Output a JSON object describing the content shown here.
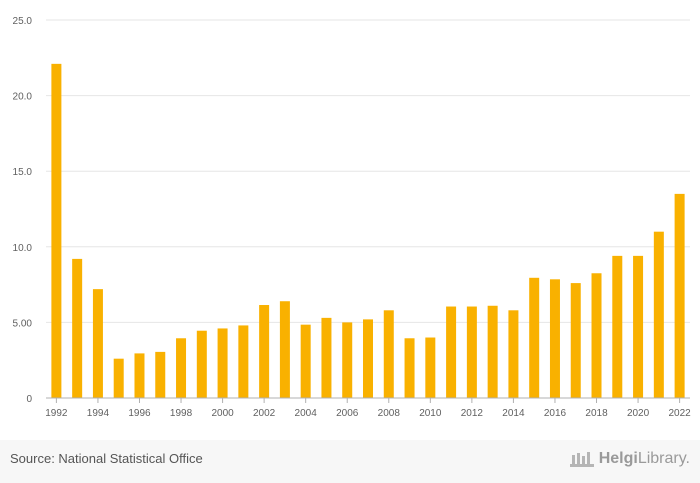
{
  "chart_data": {
    "type": "bar",
    "categories": [
      "1992",
      "1993",
      "1994",
      "1995",
      "1996",
      "1997",
      "1998",
      "1999",
      "2000",
      "2001",
      "2002",
      "2003",
      "2004",
      "2005",
      "2006",
      "2007",
      "2008",
      "2009",
      "2010",
      "2011",
      "2012",
      "2013",
      "2014",
      "2015",
      "2016",
      "2017",
      "2018",
      "2019",
      "2020",
      "2021",
      "2022"
    ],
    "values": [
      22.1,
      9.2,
      7.2,
      2.6,
      2.95,
      3.05,
      3.95,
      4.45,
      4.6,
      4.8,
      6.15,
      6.4,
      4.85,
      5.3,
      5.0,
      5.2,
      5.8,
      3.95,
      4.0,
      6.05,
      6.05,
      6.1,
      5.8,
      7.95,
      7.85,
      7.6,
      8.25,
      9.4,
      9.4,
      11.0,
      13.5
    ],
    "x_tick_labels": [
      "1992",
      "1994",
      "1996",
      "1998",
      "2000",
      "2002",
      "2004",
      "2006",
      "2008",
      "2010",
      "2012",
      "2014",
      "2016",
      "2018",
      "2020",
      "2022"
    ],
    "y_ticks": [
      0,
      5,
      10,
      15,
      20,
      25
    ],
    "y_tick_labels": [
      "0",
      "5.00",
      "10.0",
      "15.0",
      "20.0",
      "25.0"
    ],
    "ylim": [
      0,
      25
    ],
    "grid": true,
    "bar_color": "#f9b100",
    "title": "",
    "xlabel": "",
    "ylabel": ""
  },
  "footer": {
    "source": "Source: National Statistical Office",
    "brand_bold": "Helgi",
    "brand_light": "Library."
  }
}
